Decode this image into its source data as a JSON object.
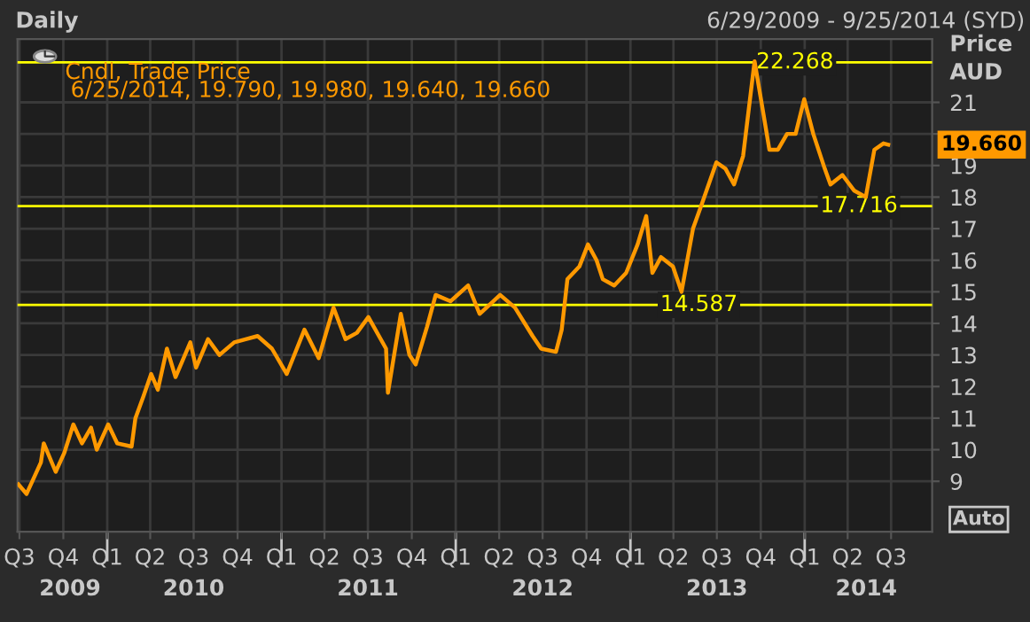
{
  "chart_data": {
    "type": "line",
    "title": "Daily",
    "subtitle": "6/29/2009 - 9/25/2014 (SYD)",
    "ylabel": "Price\nAUD",
    "x": [
      "2009-06-29",
      "2009-07-16",
      "2009-08-15",
      "2009-08-21",
      "2009-09-15",
      "2009-10-03",
      "2009-10-22",
      "2009-11-09",
      "2009-11-28",
      "2009-12-10",
      "2010-01-03",
      "2010-01-22",
      "2010-02-21",
      "2010-03-01",
      "2010-03-18",
      "2010-04-03",
      "2010-04-17",
      "2010-05-06",
      "2010-05-24",
      "2010-06-24",
      "2010-07-06",
      "2010-07-31",
      "2010-08-24",
      "2010-09-24",
      "2010-10-18",
      "2010-11-12",
      "2010-12-12",
      "2011-01-12",
      "2011-02-18",
      "2011-03-20",
      "2011-04-20",
      "2011-05-15",
      "2011-06-08",
      "2011-07-02",
      "2011-08-08",
      "2011-08-12",
      "2011-09-08",
      "2011-09-26",
      "2011-10-09",
      "2011-11-02",
      "2011-11-20",
      "2011-12-21",
      "2012-01-27",
      "2012-02-20",
      "2012-04-03",
      "2012-05-04",
      "2012-06-10",
      "2012-06-28",
      "2012-07-29",
      "2012-08-10",
      "2012-08-22",
      "2012-09-16",
      "2012-10-04",
      "2012-10-22",
      "2012-11-04",
      "2012-11-28",
      "2012-12-23",
      "2013-01-16",
      "2013-02-03",
      "2013-02-16",
      "2013-03-06",
      "2013-03-31",
      "2013-04-18",
      "2013-05-12",
      "2013-05-31",
      "2013-06-30",
      "2013-07-19",
      "2013-08-06",
      "2013-08-25",
      "2013-09-06",
      "2013-09-18",
      "2013-10-07",
      "2013-10-19",
      "2013-11-06",
      "2013-11-25",
      "2013-12-13",
      "2013-12-31",
      "2014-01-19",
      "2014-02-12",
      "2014-02-24",
      "2014-03-21",
      "2014-04-15",
      "2014-05-09",
      "2014-05-27",
      "2014-06-15",
      "2014-06-25"
    ],
    "series": [
      {
        "name": "Cndl, Trade Price",
        "color": "#ff9900",
        "values": [
          8.9,
          8.6,
          9.6,
          10.2,
          9.3,
          9.9,
          10.8,
          10.2,
          10.7,
          10.0,
          10.8,
          10.2,
          10.1,
          11.0,
          11.7,
          12.4,
          11.9,
          13.2,
          12.3,
          13.4,
          12.6,
          13.5,
          13.0,
          13.4,
          13.5,
          13.6,
          13.2,
          12.4,
          13.8,
          12.9,
          14.5,
          13.5,
          13.7,
          14.2,
          13.2,
          11.8,
          14.3,
          13.0,
          12.7,
          13.9,
          14.9,
          14.7,
          15.2,
          14.3,
          14.9,
          14.5,
          13.6,
          13.2,
          13.1,
          13.8,
          15.4,
          15.8,
          16.5,
          16.0,
          15.4,
          15.2,
          15.6,
          16.5,
          17.4,
          15.6,
          16.1,
          15.8,
          15.0,
          17.0,
          17.8,
          19.1,
          18.9,
          18.4,
          19.3,
          20.8,
          22.3,
          20.6,
          19.5,
          19.5,
          20.0,
          20.0,
          21.1,
          20.0,
          18.9,
          18.4,
          18.7,
          18.2,
          18.0,
          19.5,
          19.7,
          19.66
        ]
      }
    ],
    "xlim": [
      "2009-06-27",
      "2014-09-25"
    ],
    "xticks": [
      {
        "value": "2009-07-01",
        "label": "Q3"
      },
      {
        "value": "2009-10-01",
        "label": "Q4"
      },
      {
        "value": "2010-01-01",
        "label": "Q1"
      },
      {
        "value": "2010-04-01",
        "label": "Q2"
      },
      {
        "value": "2010-07-01",
        "label": "Q3"
      },
      {
        "value": "2010-10-01",
        "label": "Q4"
      },
      {
        "value": "2011-01-01",
        "label": "Q1"
      },
      {
        "value": "2011-04-01",
        "label": "Q2"
      },
      {
        "value": "2011-07-01",
        "label": "Q3"
      },
      {
        "value": "2011-10-01",
        "label": "Q4"
      },
      {
        "value": "2012-01-01",
        "label": "Q1"
      },
      {
        "value": "2012-04-01",
        "label": "Q2"
      },
      {
        "value": "2012-07-01",
        "label": "Q3"
      },
      {
        "value": "2012-10-01",
        "label": "Q4"
      },
      {
        "value": "2013-01-01",
        "label": "Q1"
      },
      {
        "value": "2013-04-01",
        "label": "Q2"
      },
      {
        "value": "2013-07-01",
        "label": "Q3"
      },
      {
        "value": "2013-10-01",
        "label": "Q4"
      },
      {
        "value": "2014-01-01",
        "label": "Q1"
      },
      {
        "value": "2014-04-01",
        "label": "Q2"
      },
      {
        "value": "2014-07-01",
        "label": "Q3"
      }
    ],
    "x2lim": [
      "2009-06-27",
      "2014-09-25"
    ],
    "x2ticks": [
      {
        "value": "2009-10-15",
        "label": "2009"
      },
      {
        "value": "2010-01-01",
        "label": null
      },
      {
        "value": "2010-07-01",
        "label": "2010"
      },
      {
        "value": "2011-01-01",
        "label": null
      },
      {
        "value": "2011-07-01",
        "label": "2011"
      },
      {
        "value": "2012-01-01",
        "label": null
      },
      {
        "value": "2012-07-01",
        "label": "2012"
      },
      {
        "value": "2013-01-01",
        "label": null
      },
      {
        "value": "2013-07-01",
        "label": "2013"
      },
      {
        "value": "2014-01-01",
        "label": null
      },
      {
        "value": "2014-05-10",
        "label": "2014"
      }
    ],
    "ylim": [
      7.4,
      23.0
    ],
    "yticks": [
      9,
      10,
      11,
      12,
      13,
      14,
      15,
      16,
      17,
      18,
      19,
      {
        "value": 20,
        "label": null
      },
      21
    ],
    "grid": true,
    "legend": "top left",
    "marker": "none",
    "line_style": "solid",
    "ref_lines": [
      {
        "axis": "y",
        "value": 22.268,
        "label": "22.268",
        "color": "#ffff00"
      },
      {
        "axis": "y",
        "value": 17.716,
        "label": "17.716",
        "color": "#ffff00"
      },
      {
        "axis": "y",
        "value": 14.587,
        "label": "14.587",
        "color": "#ffff00"
      }
    ],
    "annotations": [
      "6/25/2014, 19.790, 19.980, 19.640, 19.660",
      {
        "text": "19.660",
        "x": "2014-06-25",
        "y": 19.66
      },
      "Auto"
    ]
  }
}
